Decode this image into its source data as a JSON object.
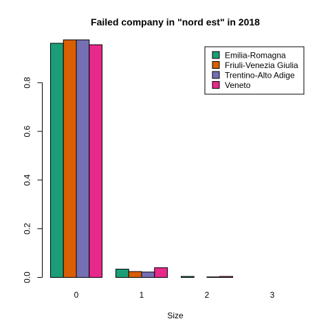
{
  "chart_data": {
    "type": "bar",
    "title": "Failed company in \"nord est\" in 2018",
    "xlabel": "Size",
    "ylabel": "",
    "categories": [
      "0",
      "1",
      "2",
      "3"
    ],
    "ylim": [
      0,
      0.98
    ],
    "yticks": [
      "0.0",
      "0.2",
      "0.4",
      "0.6",
      "0.8"
    ],
    "series": [
      {
        "name": "Emilia-Romagna",
        "color": "#1b9e77",
        "values": [
          0.962,
          0.034,
          0.004,
          0.0
        ]
      },
      {
        "name": "Friuli-Venezia Giulia",
        "color": "#d95f02",
        "values": [
          0.976,
          0.024,
          0.0,
          0.0
        ]
      },
      {
        "name": "Trentino-Alto Adige",
        "color": "#7570b3",
        "values": [
          0.976,
          0.022,
          0.002,
          0.0
        ]
      },
      {
        "name": "Veneto",
        "color": "#e7298a",
        "values": [
          0.956,
          0.04,
          0.004,
          0.0
        ]
      }
    ],
    "grid": false,
    "legend_position": "top-right"
  }
}
